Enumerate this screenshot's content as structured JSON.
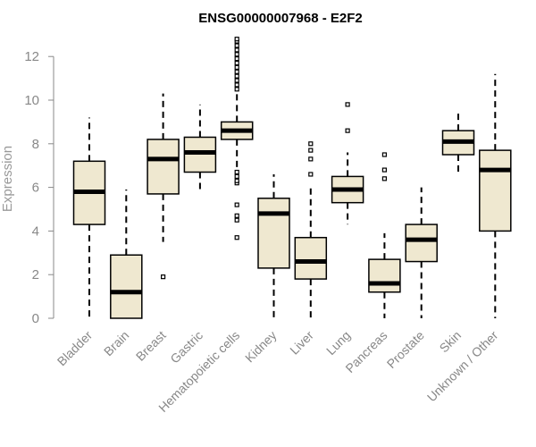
{
  "chart_data": {
    "type": "boxplot",
    "title": "ENSG00000007968 - E2F2",
    "xlabel": "",
    "ylabel": "Expression",
    "ylim": [
      0,
      12.5
    ],
    "yticks": [
      0,
      2,
      4,
      6,
      8,
      10,
      12
    ],
    "grid": false,
    "colors": {
      "box_fill": "#efe8d0",
      "box_stroke": "#000000",
      "median": "#000000",
      "axis": "#888888"
    },
    "categories": [
      "Bladder",
      "Brain",
      "Breast",
      "Gastric",
      "Hematopoietic cells",
      "Kidney",
      "Liver",
      "Lung",
      "Pancreas",
      "Prostate",
      "Skin",
      "Unknown / Other"
    ],
    "series": [
      {
        "name": "Bladder",
        "whisker_low": 0.0,
        "q1": 4.3,
        "median": 5.8,
        "q3": 7.2,
        "whisker_high": 9.2,
        "outliers": []
      },
      {
        "name": "Brain",
        "whisker_low": 0.0,
        "q1": 0.0,
        "median": 1.2,
        "q3": 2.9,
        "whisker_high": 5.9,
        "outliers": []
      },
      {
        "name": "Breast",
        "whisker_low": 3.5,
        "q1": 5.7,
        "median": 7.3,
        "q3": 8.2,
        "whisker_high": 10.3,
        "outliers": [
          1.9
        ]
      },
      {
        "name": "Gastric",
        "whisker_low": 5.8,
        "q1": 6.7,
        "median": 7.6,
        "q3": 8.3,
        "whisker_high": 9.8,
        "outliers": []
      },
      {
        "name": "Hematopoietic cells",
        "whisker_low": 6.9,
        "q1": 8.2,
        "median": 8.6,
        "q3": 9.0,
        "whisker_high": 10.3,
        "outliers": [
          3.7,
          4.5,
          4.7,
          5.2,
          6.2,
          6.3,
          6.5,
          6.7,
          10.5,
          10.7,
          10.9,
          11.1,
          11.3,
          11.5,
          11.7,
          11.9,
          12.1,
          12.3,
          12.5,
          12.7,
          12.8
        ]
      },
      {
        "name": "Kidney",
        "whisker_low": 0.0,
        "q1": 2.3,
        "median": 4.8,
        "q3": 5.5,
        "whisker_high": 6.6,
        "outliers": []
      },
      {
        "name": "Liver",
        "whisker_low": 0.0,
        "q1": 1.8,
        "median": 2.6,
        "q3": 3.7,
        "whisker_high": 6.1,
        "outliers": [
          6.6,
          7.3,
          7.7,
          8.0
        ]
      },
      {
        "name": "Lung",
        "whisker_low": 4.3,
        "q1": 5.3,
        "median": 5.9,
        "q3": 6.5,
        "whisker_high": 7.6,
        "outliers": [
          8.6,
          9.8
        ]
      },
      {
        "name": "Pancreas",
        "whisker_low": 0.0,
        "q1": 1.2,
        "median": 1.6,
        "q3": 2.7,
        "whisker_high": 3.9,
        "outliers": [
          6.4,
          6.8,
          7.5
        ]
      },
      {
        "name": "Prostate",
        "whisker_low": 0.0,
        "q1": 2.6,
        "median": 3.6,
        "q3": 4.3,
        "whisker_high": 6.0,
        "outliers": []
      },
      {
        "name": "Skin",
        "whisker_low": 6.7,
        "q1": 7.5,
        "median": 8.1,
        "q3": 8.6,
        "whisker_high": 9.5,
        "outliers": []
      },
      {
        "name": "Unknown / Other",
        "whisker_low": 0.0,
        "q1": 4.0,
        "median": 6.8,
        "q3": 7.7,
        "whisker_high": 11.2,
        "outliers": []
      }
    ]
  }
}
